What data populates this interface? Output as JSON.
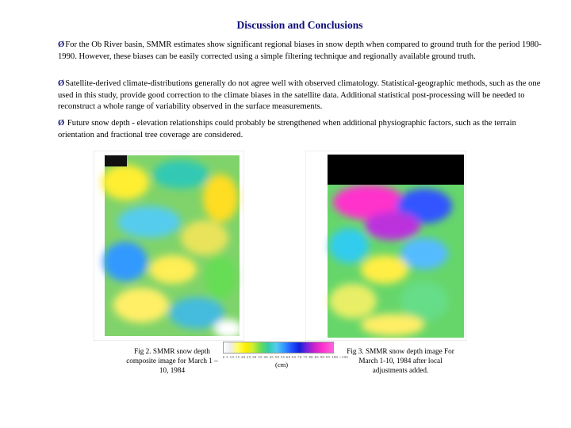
{
  "title": "Discussion and Conclusions",
  "bullet_symbol": "Ø",
  "paragraphs": [
    "For the Ob River basin, SMMR estimates show significant regional biases in snow depth when compared to ground truth for the period 1980-1990.  However, these biases can be easily corrected using a simple filtering technique and regionally available ground truth.",
    "Satellite-derived climate-distributions generally do not agree well with observed climatology. Statistical-geographic methods, such as the one used in this study, provide good correction to the climate biases in the satellite data. Additional statistical post-processing will be needed to reconstruct a whole range of variability observed in the surface measurements.",
    " Future snow depth - elevation relationships could probably be strengthened when additional physiographic factors, such as the terrain orientation and fractional tree coverage are considered."
  ],
  "figures": {
    "left_caption": "Fig 2. SMMR snow depth composite image for March 1 – 10, 1984",
    "right_caption": "Fig 3.  SMMR snow depth image For March 1-10, 1984 after local adjustments added."
  },
  "colorbar": {
    "ticks": "0    5   10  15  20  25  30  35  40  45  50  55  60  65  70  75  80  85  90  95  100  >100",
    "unit": "(cm)"
  }
}
